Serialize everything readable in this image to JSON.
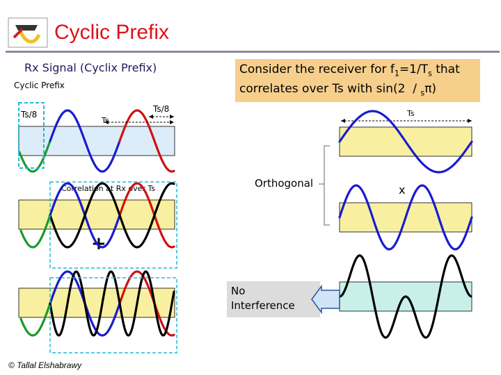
{
  "header": {
    "title": "Cyclic Prefix",
    "colors": {
      "title": "#e0101a",
      "rule": "#8a8aa0"
    }
  },
  "left": {
    "heading": "Rx Signal (Cyclix Prefix)",
    "cyclic_prefix_label": "Cyclic Prefix",
    "ts8_left": "Ts/8",
    "ts_mid": "Ts",
    "ts8_right": "Ts/8",
    "correlation_label": "Correlation at Rx over Ts",
    "plus": "+"
  },
  "right": {
    "consider_line1_pre": "Consider the receiver for f",
    "consider_sub1": "1",
    "consider_line1_mid": "=1/T",
    "consider_sub2": "s",
    "consider_line1_post": " that",
    "consider_line2": "correlates over Ts with ",
    "consider_formula_a": "sin(2",
    "consider_formula_b": "/",
    "consider_formula_sub": "s",
    "consider_formula_c": "π)",
    "ts_label": "Ts",
    "orthogonal": "Orthogonal",
    "times": "x",
    "no_interference_1": "No",
    "no_interference_2": "Interference"
  },
  "footer": {
    "copyright": "© Tallal Elshabrawy"
  },
  "colors": {
    "wave_green": "#1a9a2a",
    "wave_blue": "#1a1ad0",
    "wave_red": "#d01010",
    "wave_black": "#000000",
    "box_yellow": "#f8f0a0",
    "box_blue": "#dcecf8",
    "box_cyan": "#c8f0e8",
    "consider_bg": "#f6cf8c",
    "arrow_fill": "#cfe4f8"
  }
}
